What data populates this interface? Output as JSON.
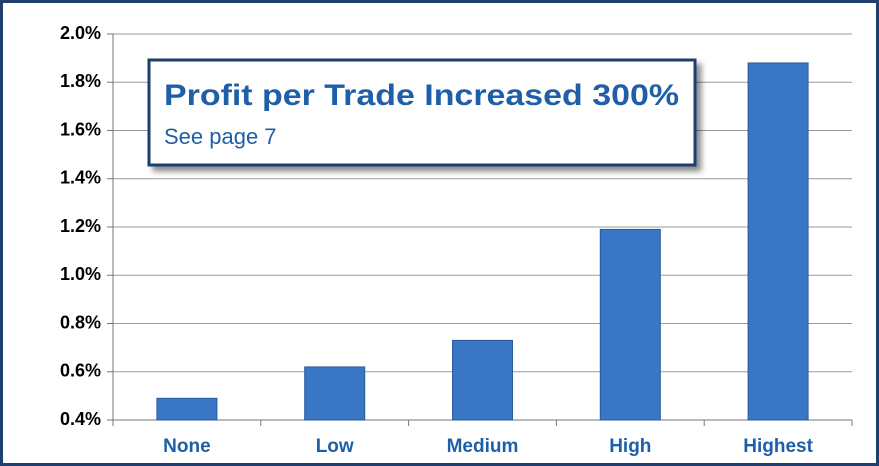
{
  "chart_data": {
    "type": "bar",
    "title": "Profit per Trade Increased 300%",
    "subtitle": "See page 7",
    "categories": [
      "None",
      "Low",
      "Medium",
      "High",
      "Highest"
    ],
    "values": [
      0.49,
      0.62,
      0.73,
      1.19,
      1.88
    ],
    "color": "#3a76c6",
    "ylim": [
      0.4,
      2.0
    ],
    "yticks": [
      {
        "value": 0.4,
        "label": "0.4%"
      },
      {
        "value": 0.6,
        "label": "0.6%"
      },
      {
        "value": 0.8,
        "label": "0.8%"
      },
      {
        "value": 1.0,
        "label": "1.0%"
      },
      {
        "value": 1.2,
        "label": "1.2%"
      },
      {
        "value": 1.4,
        "label": "1.4%"
      },
      {
        "value": 1.6,
        "label": "1.6%"
      },
      {
        "value": 1.8,
        "label": "1.8%"
      },
      {
        "value": 2.0,
        "label": "2.0%"
      }
    ],
    "grid": true
  }
}
